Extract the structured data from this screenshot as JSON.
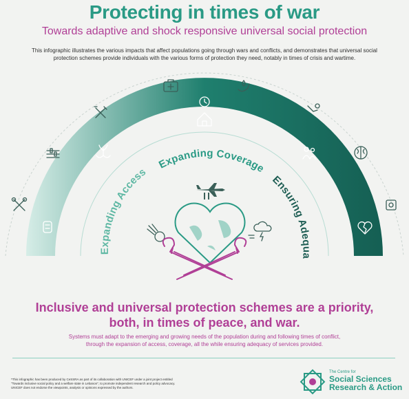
{
  "header": {
    "title": "Protecting in times of war",
    "subtitle": "Towards adaptive and shock responsive universal social protection",
    "intro_line1": "This infographic illustrates the various impacts that affect populations going through wars and conflicts, and demonstrates that universal social",
    "intro_line2": "protection schemes provide individuals with the various forms of protection they need, notably in times of crisis and wartime."
  },
  "arc_labels": {
    "access": "Expanding Access",
    "coverage": "Expanding Coverage",
    "adequacy": "Ensuring Adequacy"
  },
  "colors": {
    "teal_dark": "#1f7f6e",
    "teal_light": "#d6ede7",
    "accent_teal": "#2a9a85",
    "magenta": "#b03f96",
    "icon_stroke": "#3a5f58"
  },
  "icons": [
    "scissors-syringe-icon",
    "syringe-icon",
    "tools-icon",
    "fork-knife-icon",
    "hands-plant-icon",
    "first-aid-kit-icon",
    "house-icon",
    "clock-icon",
    "water-hand-icon",
    "hand-coin-icon",
    "family-icon",
    "brain-icon",
    "money-hand-icon",
    "broken-heart-icon",
    "warplane-icon",
    "comet-icon",
    "storm-cloud-icon",
    "globe-heart-icon",
    "crossed-arms-icon"
  ],
  "bottom": {
    "headline_line1": "Inclusive and universal protection schemes are a priority,",
    "headline_line2": "both, in times of peace, and war.",
    "desc_line1": "Systems must adapt to the emerging and growing needs of the population during and following times of conflict,",
    "desc_line2": "through the expansion of access, coverage, all the while ensuring adequacy of services provided."
  },
  "footnote": {
    "line1": "*This infographic has been produced by CeSSRA as part of its collaboration with UNICEF under a joint project entitled",
    "line2": "\"Towards inclusive social policy and a welfare state in Lebanon\", to promote independent research and policy advocacy.",
    "line3": "UNICEF does not endorse the viewpoints, analysis or opinions expressed by the authors."
  },
  "logo": {
    "small": "The Centre for",
    "line1": "Social Sciences",
    "line2": "Research & Action"
  }
}
